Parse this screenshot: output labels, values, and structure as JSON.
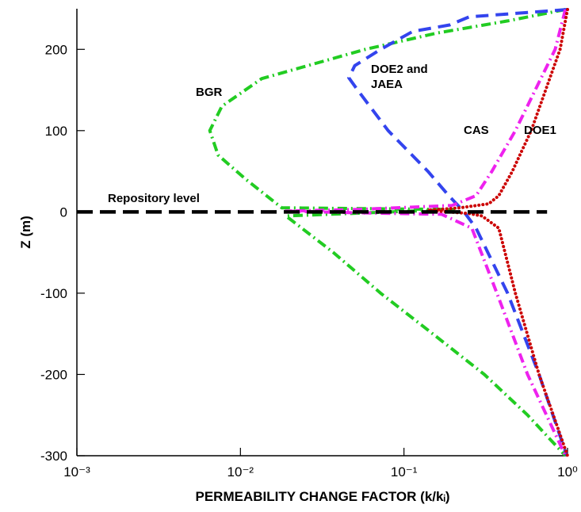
{
  "chart_data": {
    "type": "line",
    "xlabel": "PERMEABILITY CHANGE FACTOR (k/kᵢ)",
    "ylabel": "Z (m)",
    "xscale": "log",
    "xlim": [
      0.001,
      1
    ],
    "ylim": [
      -300,
      250
    ],
    "xticks": [
      {
        "value": 0.001,
        "label": "10⁻³"
      },
      {
        "value": 0.01,
        "label": "10⁻²"
      },
      {
        "value": 0.1,
        "label": "10⁻¹"
      },
      {
        "value": 1,
        "label": "10⁰"
      }
    ],
    "yticks": [
      -300,
      -200,
      -100,
      0,
      100,
      200
    ],
    "series": [
      {
        "name": "BGR",
        "color": "#22cc22",
        "linestyle": "dashdot",
        "x": [
          0.97,
          0.43,
          0.158,
          0.058,
          0.0135,
          0.0077,
          0.0065,
          0.0073,
          0.0108,
          0.0179,
          0.2,
          0.019,
          0.037,
          0.072,
          0.15,
          0.31,
          0.57,
          0.97
        ],
        "values": [
          249,
          235,
          220,
          200,
          164,
          130,
          100,
          70,
          40,
          5,
          3,
          -5,
          -50,
          -100,
          -150,
          -200,
          -250,
          -300
        ]
      },
      {
        "name": "DOE2 and JAEA",
        "color": "#3344ee",
        "linestyle": "dashed",
        "x": [
          1,
          0.25,
          0.19,
          0.113,
          0.072,
          0.05,
          0.046,
          0.052,
          0.08,
          0.14,
          0.188,
          0.233,
          0.276,
          0.43,
          0.67,
          0.99
        ],
        "values": [
          249,
          240,
          230,
          222,
          200,
          180,
          165,
          150,
          100,
          50,
          20,
          0,
          -20,
          -100,
          -200,
          -300
        ]
      },
      {
        "name": "CAS",
        "color": "#ee22ee",
        "linestyle": "dashdot",
        "x": [
          0.97,
          0.84,
          0.48,
          0.345,
          0.276,
          0.197,
          0.052,
          0.019,
          0.05,
          0.17,
          0.26,
          0.37,
          0.57,
          0.97
        ],
        "values": [
          249,
          200,
          100,
          50,
          20,
          8,
          3,
          1,
          -1,
          -3,
          -20,
          -100,
          -200,
          -300
        ]
      },
      {
        "name": "DOE1",
        "color": "#cc0000",
        "linestyle": "dotted",
        "x": [
          1,
          0.9,
          0.6,
          0.46,
          0.38,
          0.33,
          0.22,
          0.14,
          0.25,
          0.3,
          0.38,
          0.48,
          0.67,
          1
        ],
        "values": [
          249,
          200,
          100,
          50,
          20,
          10,
          5,
          2,
          -2,
          -5,
          -20,
          -100,
          -200,
          -300
        ]
      },
      {
        "name": "Repository level",
        "color": "#000000",
        "linestyle": "longdash",
        "x": [
          0.001,
          0.75
        ],
        "values": [
          0,
          0
        ]
      }
    ]
  }
}
